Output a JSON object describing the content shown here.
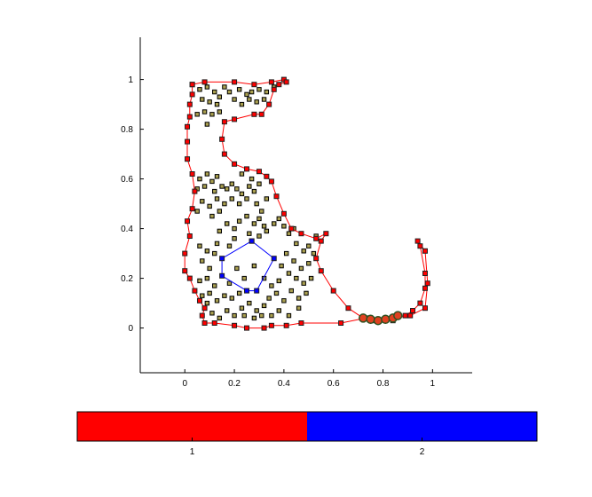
{
  "chart_data": {
    "type": "scatter",
    "xlim": [
      -0.18,
      1.16
    ],
    "ylim": [
      -0.18,
      1.17
    ],
    "x_ticks": [
      "0",
      "0.2",
      "0.4",
      "0.6",
      "0.8",
      "1"
    ],
    "x_tick_values": [
      0,
      0.2,
      0.4,
      0.6,
      0.8,
      1
    ],
    "y_ticks": [
      "0",
      "0.2",
      "0.4",
      "0.6",
      "0.8",
      "1"
    ],
    "y_tick_values": [
      0,
      0.2,
      0.4,
      0.6,
      0.8,
      1
    ],
    "grid": false,
    "boundaries": [
      {
        "cluster": "1",
        "color": "#ff0000",
        "points": [
          [
            0.03,
            0.98
          ],
          [
            0.08,
            0.99
          ],
          [
            0.2,
            0.99
          ],
          [
            0.28,
            0.98
          ],
          [
            0.35,
            0.99
          ],
          [
            0.4,
            1.0
          ],
          [
            0.41,
            0.99
          ],
          [
            0.38,
            0.98
          ],
          [
            0.36,
            0.96
          ],
          [
            0.34,
            0.9
          ],
          [
            0.31,
            0.86
          ],
          [
            0.28,
            0.86
          ],
          [
            0.2,
            0.84
          ],
          [
            0.16,
            0.83
          ],
          [
            0.15,
            0.76
          ],
          [
            0.16,
            0.7
          ],
          [
            0.2,
            0.66
          ],
          [
            0.25,
            0.64
          ],
          [
            0.3,
            0.63
          ],
          [
            0.33,
            0.61
          ],
          [
            0.35,
            0.59
          ],
          [
            0.37,
            0.53
          ],
          [
            0.4,
            0.46
          ],
          [
            0.43,
            0.4
          ],
          [
            0.47,
            0.38
          ],
          [
            0.53,
            0.36
          ],
          [
            0.57,
            0.38
          ],
          [
            0.55,
            0.35
          ],
          [
            0.53,
            0.28
          ],
          [
            0.55,
            0.23
          ],
          [
            0.6,
            0.15
          ],
          [
            0.66,
            0.08
          ],
          [
            0.72,
            0.04
          ],
          [
            0.77,
            0.03
          ],
          [
            0.84,
            0.03
          ],
          [
            0.89,
            0.05
          ],
          [
            0.92,
            0.07
          ],
          [
            0.95,
            0.1
          ],
          [
            0.97,
            0.16
          ],
          [
            0.97,
            0.22
          ],
          [
            0.95,
            0.33
          ],
          [
            0.94,
            0.35
          ],
          [
            0.97,
            0.31
          ],
          [
            0.98,
            0.18
          ],
          [
            0.97,
            0.08
          ],
          [
            0.91,
            0.05
          ],
          [
            0.84,
            0.04
          ],
          [
            0.78,
            0.03
          ],
          [
            0.73,
            0.04
          ],
          [
            0.63,
            0.02
          ],
          [
            0.47,
            0.02
          ],
          [
            0.41,
            0.01
          ],
          [
            0.35,
            0.01
          ],
          [
            0.32,
            0.0
          ],
          [
            0.25,
            0.0
          ],
          [
            0.2,
            0.01
          ],
          [
            0.12,
            0.02
          ],
          [
            0.08,
            0.02
          ],
          [
            0.07,
            0.05
          ],
          [
            0.08,
            0.08
          ],
          [
            0.06,
            0.11
          ],
          [
            0.04,
            0.15
          ],
          [
            0.02,
            0.2
          ],
          [
            0.0,
            0.23
          ],
          [
            0.0,
            0.3
          ],
          [
            0.02,
            0.37
          ],
          [
            0.01,
            0.43
          ],
          [
            0.03,
            0.48
          ],
          [
            0.04,
            0.55
          ],
          [
            0.03,
            0.62
          ],
          [
            0.01,
            0.68
          ],
          [
            0.01,
            0.75
          ],
          [
            0.01,
            0.81
          ],
          [
            0.02,
            0.85
          ],
          [
            0.02,
            0.9
          ],
          [
            0.03,
            0.94
          ],
          [
            0.03,
            0.98
          ]
        ]
      },
      {
        "cluster": "2",
        "color": "#0000ff",
        "points": [
          [
            0.27,
            0.35
          ],
          [
            0.36,
            0.28
          ],
          [
            0.29,
            0.15
          ],
          [
            0.25,
            0.15
          ],
          [
            0.15,
            0.21
          ],
          [
            0.15,
            0.28
          ],
          [
            0.27,
            0.35
          ]
        ]
      }
    ],
    "highlighted_points": [
      [
        0.72,
        0.04
      ],
      [
        0.75,
        0.035
      ],
      [
        0.78,
        0.03
      ],
      [
        0.81,
        0.035
      ],
      [
        0.84,
        0.04
      ],
      [
        0.86,
        0.05
      ]
    ],
    "interior_points": [
      [
        0.06,
        0.96
      ],
      [
        0.09,
        0.97
      ],
      [
        0.12,
        0.95
      ],
      [
        0.14,
        0.93
      ],
      [
        0.16,
        0.97
      ],
      [
        0.18,
        0.95
      ],
      [
        0.22,
        0.96
      ],
      [
        0.25,
        0.94
      ],
      [
        0.27,
        0.95
      ],
      [
        0.3,
        0.96
      ],
      [
        0.33,
        0.95
      ],
      [
        0.36,
        0.97
      ],
      [
        0.07,
        0.92
      ],
      [
        0.1,
        0.91
      ],
      [
        0.13,
        0.9
      ],
      [
        0.2,
        0.92
      ],
      [
        0.23,
        0.9
      ],
      [
        0.26,
        0.92
      ],
      [
        0.29,
        0.91
      ],
      [
        0.32,
        0.92
      ],
      [
        0.05,
        0.86
      ],
      [
        0.08,
        0.87
      ],
      [
        0.11,
        0.86
      ],
      [
        0.14,
        0.87
      ],
      [
        0.09,
        0.82
      ],
      [
        0.06,
        0.6
      ],
      [
        0.09,
        0.62
      ],
      [
        0.11,
        0.59
      ],
      [
        0.13,
        0.61
      ],
      [
        0.05,
        0.56
      ],
      [
        0.08,
        0.57
      ],
      [
        0.12,
        0.55
      ],
      [
        0.15,
        0.57
      ],
      [
        0.17,
        0.56
      ],
      [
        0.19,
        0.58
      ],
      [
        0.21,
        0.56
      ],
      [
        0.23,
        0.54
      ],
      [
        0.26,
        0.57
      ],
      [
        0.28,
        0.55
      ],
      [
        0.3,
        0.58
      ],
      [
        0.25,
        0.52
      ],
      [
        0.22,
        0.5
      ],
      [
        0.19,
        0.52
      ],
      [
        0.16,
        0.5
      ],
      [
        0.13,
        0.52
      ],
      [
        0.1,
        0.49
      ],
      [
        0.07,
        0.51
      ],
      [
        0.05,
        0.47
      ],
      [
        0.11,
        0.45
      ],
      [
        0.14,
        0.47
      ],
      [
        0.29,
        0.5
      ],
      [
        0.31,
        0.47
      ],
      [
        0.33,
        0.52
      ],
      [
        0.3,
        0.44
      ],
      [
        0.32,
        0.41
      ],
      [
        0.28,
        0.42
      ],
      [
        0.25,
        0.45
      ],
      [
        0.22,
        0.43
      ],
      [
        0.2,
        0.4
      ],
      [
        0.17,
        0.42
      ],
      [
        0.14,
        0.39
      ],
      [
        0.26,
        0.38
      ],
      [
        0.3,
        0.37
      ],
      [
        0.33,
        0.39
      ],
      [
        0.36,
        0.42
      ],
      [
        0.38,
        0.44
      ],
      [
        0.4,
        0.41
      ],
      [
        0.42,
        0.38
      ],
      [
        0.44,
        0.4
      ],
      [
        0.45,
        0.34
      ],
      [
        0.48,
        0.31
      ],
      [
        0.5,
        0.33
      ],
      [
        0.52,
        0.3
      ],
      [
        0.5,
        0.26
      ],
      [
        0.47,
        0.24
      ],
      [
        0.44,
        0.27
      ],
      [
        0.41,
        0.3
      ],
      [
        0.39,
        0.25
      ],
      [
        0.42,
        0.22
      ],
      [
        0.45,
        0.2
      ],
      [
        0.48,
        0.18
      ],
      [
        0.51,
        0.2
      ],
      [
        0.49,
        0.14
      ],
      [
        0.46,
        0.12
      ],
      [
        0.43,
        0.15
      ],
      [
        0.4,
        0.11
      ],
      [
        0.37,
        0.14
      ],
      [
        0.34,
        0.12
      ],
      [
        0.32,
        0.09
      ],
      [
        0.29,
        0.07
      ],
      [
        0.26,
        0.1
      ],
      [
        0.23,
        0.08
      ],
      [
        0.2,
        0.05
      ],
      [
        0.17,
        0.07
      ],
      [
        0.14,
        0.04
      ],
      [
        0.11,
        0.06
      ],
      [
        0.09,
        0.1
      ],
      [
        0.1,
        0.14
      ],
      [
        0.12,
        0.17
      ],
      [
        0.09,
        0.2
      ],
      [
        0.1,
        0.24
      ],
      [
        0.07,
        0.27
      ],
      [
        0.09,
        0.31
      ],
      [
        0.12,
        0.3
      ],
      [
        0.13,
        0.34
      ],
      [
        0.18,
        0.33
      ],
      [
        0.2,
        0.36
      ],
      [
        0.06,
        0.33
      ],
      [
        0.06,
        0.19
      ],
      [
        0.07,
        0.13
      ],
      [
        0.13,
        0.11
      ],
      [
        0.16,
        0.13
      ],
      [
        0.19,
        0.12
      ],
      [
        0.22,
        0.14
      ],
      [
        0.24,
        0.05
      ],
      [
        0.28,
        0.04
      ],
      [
        0.31,
        0.05
      ],
      [
        0.35,
        0.05
      ],
      [
        0.38,
        0.07
      ],
      [
        0.42,
        0.05
      ],
      [
        0.46,
        0.08
      ],
      [
        0.18,
        0.18
      ],
      [
        0.21,
        0.24
      ],
      [
        0.24,
        0.2
      ],
      [
        0.28,
        0.25
      ],
      [
        0.32,
        0.2
      ],
      [
        0.35,
        0.17
      ],
      [
        0.38,
        0.19
      ],
      [
        0.53,
        0.37
      ],
      [
        0.2,
        0.66
      ],
      [
        0.23,
        0.62
      ],
      [
        0.27,
        0.6
      ]
    ],
    "colorbar": {
      "ticks": [
        "1",
        "2"
      ],
      "colors": [
        "#ff0000",
        "#0000ff"
      ]
    }
  }
}
